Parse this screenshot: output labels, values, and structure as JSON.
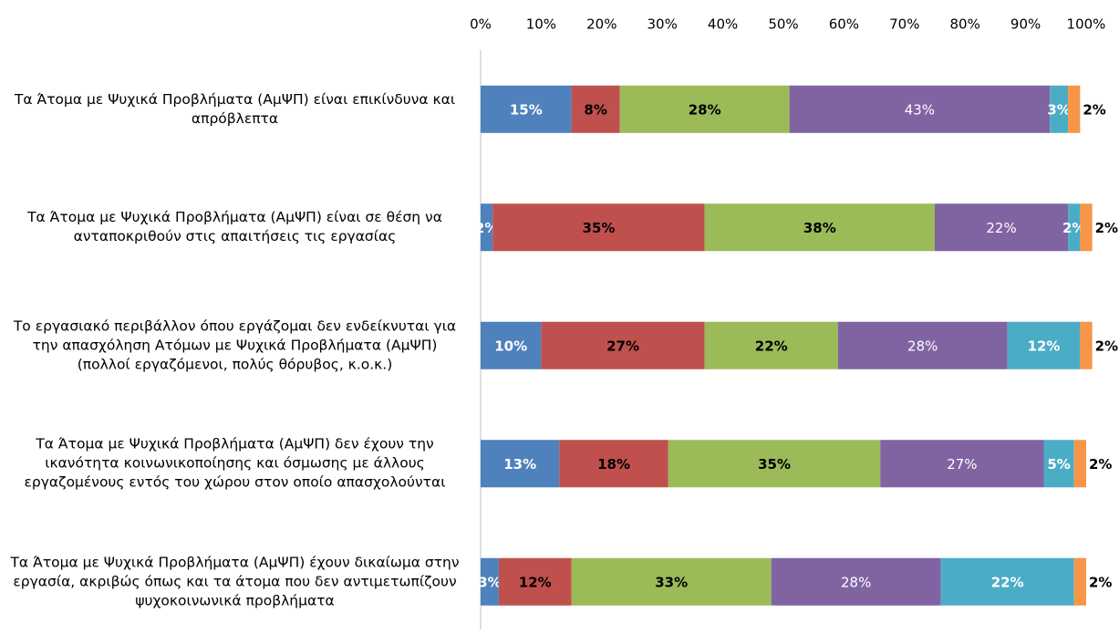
{
  "chart_data": {
    "type": "stacked-bar-horizontal",
    "categories": [
      "Τα Άτομα με Ψυχικά Προβλήματα (ΑμΨΠ) είναι επικίνδυνα και απρόβλεπτα",
      "Τα Άτομα με Ψυχικά Προβλήματα (ΑμΨΠ) είναι σε θέση να ανταποκριθούν στις απαιτήσεις τις εργασίας",
      "Το εργασιακό περιβάλλον όπου εργάζομαι δεν ενδείκνυται για την απασχόληση Ατόμων με Ψυχικά Προβλήματα (ΑμΨΠ) (πολλοί εργαζόμενοι, πολύς θόρυβος, κ.ο.κ.)",
      "Τα Άτομα με Ψυχικά Προβλήματα (ΑμΨΠ) δεν έχουν την ικανότητα κοινωνικοποίησης και όσμωσης με άλλους εργαζομένους εντός του χώρου στον οποίο απασχολούνται",
      "Τα Άτομα με Ψυχικά Προβλήματα (ΑμΨΠ) έχουν δικαίωμα στην εργασία, ακριβώς όπως και τα άτομα που δεν αντιμετωπίζουν ψυχοκοινωνικά προβλήματα"
    ],
    "series": [
      {
        "color": "#4f81bd",
        "values": [
          15,
          2,
          10,
          13,
          3
        ],
        "value_labels": [
          "15%",
          "2%",
          "10%",
          "13%",
          "3%"
        ]
      },
      {
        "color": "#c0504d",
        "values": [
          8,
          35,
          27,
          18,
          12
        ],
        "value_labels": [
          "8%",
          "35%",
          "27%",
          "18%",
          "12%"
        ]
      },
      {
        "color": "#9bbb59",
        "values": [
          28,
          38,
          22,
          35,
          33
        ],
        "value_labels": [
          "28%",
          "38%",
          "22%",
          "35%",
          "33%"
        ]
      },
      {
        "color": "#8064a2",
        "values": [
          43,
          22,
          28,
          27,
          28
        ],
        "value_labels": [
          "43%",
          "22%",
          "28%",
          "27%",
          "28%"
        ]
      },
      {
        "color": "#4bacc6",
        "values": [
          3,
          2,
          12,
          5,
          22
        ],
        "value_labels": [
          "3%",
          "2%",
          "12%",
          "5%",
          "22%"
        ]
      },
      {
        "color": "#f79646",
        "values": [
          2,
          2,
          2,
          2,
          2
        ],
        "value_labels": [
          "2%",
          "2%",
          "2%",
          "2%",
          "2%"
        ]
      }
    ],
    "xlim": [
      0,
      100
    ],
    "xticks": [
      {
        "value": 0,
        "label": "0%"
      },
      {
        "value": 10,
        "label": "10%"
      },
      {
        "value": 20,
        "label": "20%"
      },
      {
        "value": 30,
        "label": "30%"
      },
      {
        "value": 40,
        "label": "40%"
      },
      {
        "value": 50,
        "label": "50%"
      },
      {
        "value": 60,
        "label": "60%"
      },
      {
        "value": 70,
        "label": "70%"
      },
      {
        "value": 80,
        "label": "80%"
      },
      {
        "value": 90,
        "label": "90%"
      },
      {
        "value": 100,
        "label": "100%"
      }
    ]
  }
}
